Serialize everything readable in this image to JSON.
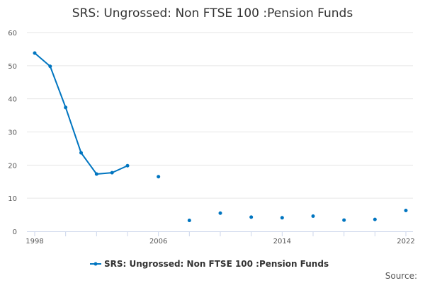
{
  "chart_data": {
    "type": "line",
    "title": "SRS: Ungrossed: Non FTSE 100 :Pension Funds",
    "xlabel": "",
    "ylabel": "",
    "ylim": [
      0,
      60
    ],
    "xlim": [
      1998,
      2022
    ],
    "yticks": [
      "0",
      "10",
      "20",
      "30",
      "40",
      "50",
      "60"
    ],
    "xtick_labels": [
      "1998",
      "2006",
      "2014",
      "2022"
    ],
    "grid": true,
    "legend_position": "bottom",
    "series": [
      {
        "name": "SRS: Ungrossed: Non FTSE 100 :Pension Funds",
        "color": "#0075c0",
        "x": [
          1998,
          1999,
          2000,
          2001,
          2002,
          2003,
          2004,
          2006,
          2008,
          2010,
          2012,
          2014,
          2016,
          2018,
          2020,
          2022
        ],
        "values": [
          53.8,
          49.8,
          37.4,
          23.7,
          17.3,
          17.7,
          19.8,
          16.5,
          3.3,
          5.5,
          4.3,
          4.1,
          4.6,
          3.4,
          3.6,
          6.3
        ]
      }
    ],
    "source_label": "Source:"
  }
}
